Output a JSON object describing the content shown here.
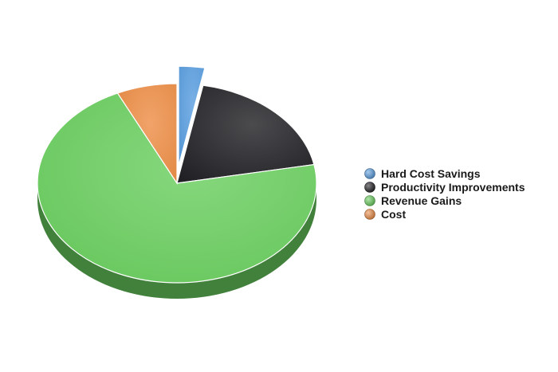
{
  "chart_data": {
    "type": "pie",
    "style": "3d",
    "categories": [
      "Hard Cost Savings",
      "Productivity Improvements",
      "Revenue Gains",
      "Cost"
    ],
    "values": [
      3,
      19,
      71,
      7
    ],
    "exploded": [
      "Hard Cost Savings"
    ],
    "legend_position": "right",
    "colors": [
      "#5b9fe0",
      "#232327",
      "#6bd060",
      "#ee8f48"
    ]
  }
}
